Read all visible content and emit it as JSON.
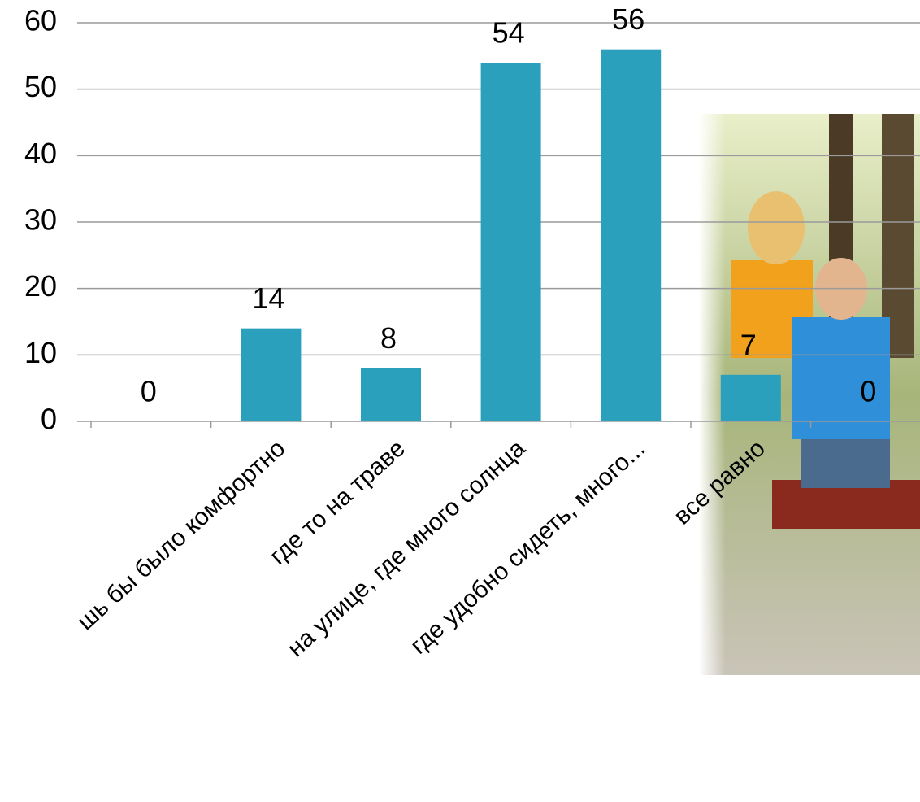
{
  "chart_data": {
    "type": "bar",
    "categories": [
      null,
      "шь бы было комфортно",
      "где то на траве",
      "на улице, где много солнца",
      "где удобно сидеть, много...",
      "все равно",
      null
    ],
    "values": [
      0,
      14,
      8,
      54,
      56,
      7,
      0
    ],
    "color": "#2aa0bd",
    "ylim": [
      0,
      60
    ],
    "yticks": [
      0,
      10,
      20,
      30,
      40,
      50,
      60
    ],
    "grid": true
  }
}
